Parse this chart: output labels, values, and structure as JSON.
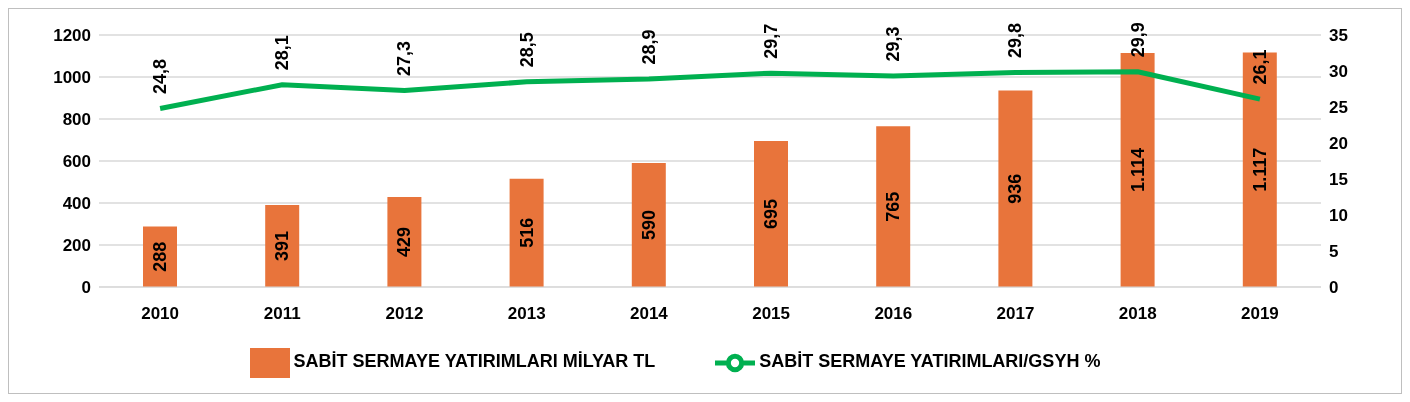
{
  "chart_data": {
    "type": "bar",
    "categories": [
      "2010",
      "2011",
      "2012",
      "2013",
      "2014",
      "2015",
      "2016",
      "2017",
      "2018",
      "2019"
    ],
    "series": [
      {
        "name": "SABİT SERMAYE YATIRIMLARI MİLYAR TL",
        "color": "#e8743b",
        "values": [
          288,
          391,
          429,
          516,
          590,
          695,
          765,
          936,
          1114,
          1117
        ],
        "value_labels": [
          "288",
          "391",
          "429",
          "516",
          "590",
          "695",
          "765",
          "936",
          "1.114",
          "1.117"
        ]
      },
      {
        "name": "SABİT SERMAYE YATIRIMLARI/GSYH %",
        "type": "line",
        "axis": "y2",
        "color": "#00b050",
        "values": [
          24.8,
          28.1,
          27.3,
          28.5,
          28.9,
          29.7,
          29.3,
          29.8,
          29.9,
          26.1
        ],
        "value_labels": [
          "24,8",
          "28,1",
          "27,3",
          "28,5",
          "28,9",
          "29,7",
          "29,3",
          "29,8",
          "29,9",
          "26,1"
        ]
      }
    ],
    "ylim": [
      0,
      1200
    ],
    "yticks": [
      0,
      200,
      400,
      600,
      800,
      1000,
      1200
    ],
    "y2lim": [
      0,
      35
    ],
    "y2ticks": [
      0,
      5,
      10,
      15,
      20,
      25,
      30,
      35
    ],
    "grid": "y",
    "legend": "bottom",
    "marker": "none",
    "line_style": "solid"
  }
}
